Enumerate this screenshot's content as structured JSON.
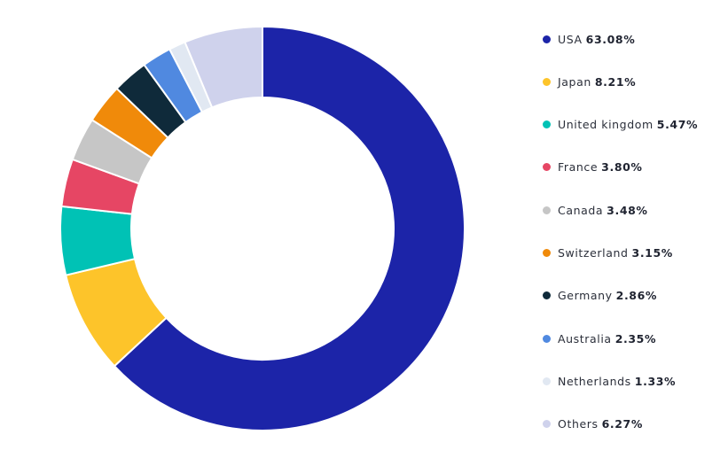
{
  "chart_data": {
    "type": "pie",
    "variant": "donut",
    "title": "",
    "legend_position": "right",
    "slice_order": "clockwise-from-top",
    "categories": [
      "USA",
      "Japan",
      "United kingdom",
      "France",
      "Canada",
      "Switzerland",
      "Germany",
      "Australia",
      "Netherlands",
      "Others"
    ],
    "values": [
      63.08,
      8.21,
      5.47,
      3.8,
      3.48,
      3.15,
      2.86,
      2.35,
      1.33,
      6.27
    ],
    "value_labels": [
      "63.08%",
      "8.21%",
      "5.47%",
      "3.80%",
      "3.48%",
      "3.15%",
      "2.86%",
      "2.35%",
      "1.33%",
      "6.27%"
    ],
    "colors": [
      "#1c24a8",
      "#fdc42a",
      "#00c2b5",
      "#e64664",
      "#c6c6c6",
      "#f08a0a",
      "#0f2a3a",
      "#5089e0",
      "#e1e8f2",
      "#cfd2ec"
    ]
  }
}
